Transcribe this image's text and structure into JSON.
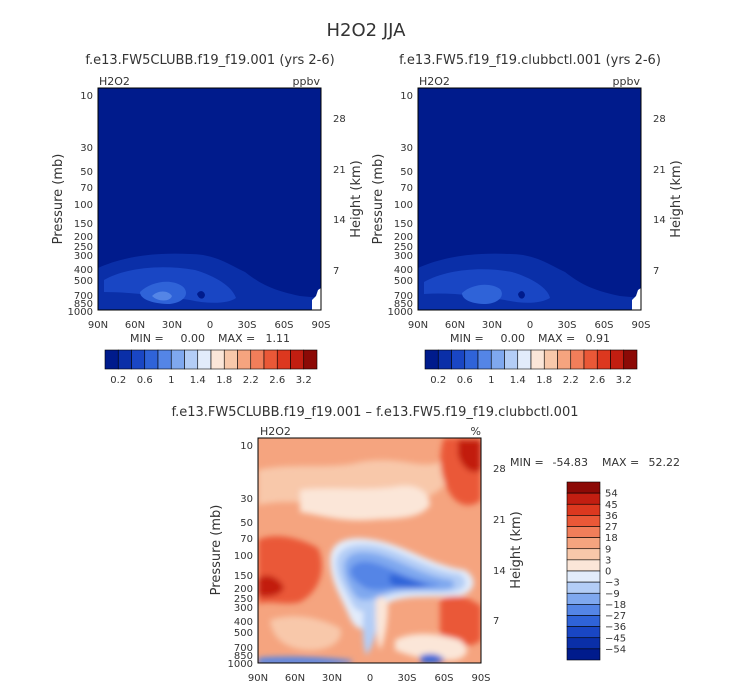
{
  "page_title": "H2O2 JJA",
  "chart_data": [
    {
      "type": "heatmap",
      "title": "f.e13.FW5CLUBB.f19_f19.001 (yrs 2-6)",
      "variable_label": "H2O2",
      "units_label": "ppbv",
      "ylabel": "Pressure (mb)",
      "y2label": "Height (km)",
      "x_ticks": [
        "90N",
        "60N",
        "30N",
        "0",
        "30S",
        "60S",
        "90S"
      ],
      "y_ticks": [
        "10",
        "30",
        "50",
        "70",
        "100",
        "150",
        "200",
        "250",
        "300",
        "400",
        "500",
        "700",
        "850",
        "1000"
      ],
      "height_ticks": [
        "28",
        "21",
        "14",
        "7"
      ],
      "stats": {
        "min_label": "MIN =",
        "min": "0.00",
        "max_label": "MAX =",
        "max": "1.11"
      },
      "colorbar_labels": [
        "0.2",
        "0.6",
        "1",
        "1.4",
        "1.8",
        "2.2",
        "2.6",
        "3.2"
      ],
      "colorbar_colors": [
        "#001b8c",
        "#0a2fa8",
        "#1946c4",
        "#2f63d8",
        "#5485e6",
        "#7fa8ef",
        "#b3cdf6",
        "#e2ecfb",
        "#fbe6d8",
        "#f8c8aa",
        "#f5a47f",
        "#f17e5a",
        "#ea5837",
        "#dc381f",
        "#c21e11",
        "#8c0a06"
      ],
      "xrange": [
        "90N",
        "90S"
      ],
      "yrange_mb": [
        1000,
        10
      ]
    },
    {
      "type": "heatmap",
      "title": "f.e13.FW5.f19_f19.clubbctl.001 (yrs 2-6)",
      "variable_label": "H2O2",
      "units_label": "ppbv",
      "ylabel": "Pressure (mb)",
      "y2label": "Height (km)",
      "x_ticks": [
        "90N",
        "60N",
        "30N",
        "0",
        "30S",
        "60S",
        "90S"
      ],
      "y_ticks": [
        "10",
        "30",
        "50",
        "70",
        "100",
        "150",
        "200",
        "250",
        "300",
        "400",
        "500",
        "700",
        "850",
        "1000"
      ],
      "height_ticks": [
        "28",
        "21",
        "14",
        "7"
      ],
      "stats": {
        "min_label": "MIN =",
        "min": "0.00",
        "max_label": "MAX =",
        "max": "0.91"
      },
      "colorbar_labels": [
        "0.2",
        "0.6",
        "1",
        "1.4",
        "1.8",
        "2.2",
        "2.6",
        "3.2"
      ],
      "colorbar_colors": [
        "#001b8c",
        "#0a2fa8",
        "#1946c4",
        "#2f63d8",
        "#5485e6",
        "#7fa8ef",
        "#b3cdf6",
        "#e2ecfb",
        "#fbe6d8",
        "#f8c8aa",
        "#f5a47f",
        "#f17e5a",
        "#ea5837",
        "#dc381f",
        "#c21e11",
        "#8c0a06"
      ],
      "xrange": [
        "90N",
        "90S"
      ],
      "yrange_mb": [
        1000,
        10
      ]
    },
    {
      "type": "heatmap",
      "title": "f.e13.FW5CLUBB.f19_f19.001 – f.e13.FW5.f19_f19.clubbctl.001",
      "variable_label": "H2O2",
      "units_label": "%",
      "ylabel": "Pressure (mb)",
      "y2label": "Height (km)",
      "x_ticks": [
        "90N",
        "60N",
        "30N",
        "0",
        "30S",
        "60S",
        "90S"
      ],
      "y_ticks": [
        "10",
        "30",
        "50",
        "70",
        "100",
        "150",
        "200",
        "250",
        "300",
        "400",
        "500",
        "700",
        "850",
        "1000"
      ],
      "height_ticks": [
        "28",
        "21",
        "14",
        "7"
      ],
      "stats": {
        "min_label": "MIN =",
        "min": "-54.83",
        "max_label": "MAX =",
        "max": "52.22"
      },
      "colorbar_labels": [
        "54",
        "45",
        "36",
        "27",
        "18",
        "9",
        "3",
        "0",
        "−3",
        "−9",
        "−18",
        "−27",
        "−36",
        "−45",
        "−54"
      ],
      "colorbar_colors": [
        "#8c0a06",
        "#c21e11",
        "#dc381f",
        "#ea5837",
        "#f17e5a",
        "#f5a47f",
        "#f8c8aa",
        "#fbe6d8",
        "#e2ecfb",
        "#b3cdf6",
        "#7fa8ef",
        "#5485e6",
        "#2f63d8",
        "#1946c4",
        "#0a2fa8",
        "#001b8c"
      ],
      "xrange": [
        "90N",
        "90S"
      ],
      "yrange_mb": [
        1000,
        10
      ]
    }
  ]
}
